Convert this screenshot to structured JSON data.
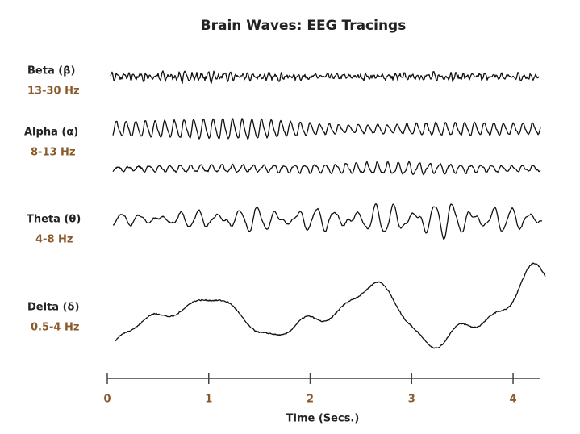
{
  "title": "Brain Waves: EEG Tracings",
  "waves": [
    {
      "name": "Beta (β)",
      "band": "13-30 Hz"
    },
    {
      "name": "Alpha (α)",
      "band": "8-13 Hz"
    },
    {
      "name": "Theta (θ)",
      "band": "4-8 Hz"
    },
    {
      "name": "Delta (δ)",
      "band": "0.5-4 Hz"
    }
  ],
  "axis": {
    "label": "Time (Secs.)",
    "xlim": [
      0,
      4.27
    ],
    "xticks": [
      0,
      1,
      2,
      3,
      4
    ]
  }
}
